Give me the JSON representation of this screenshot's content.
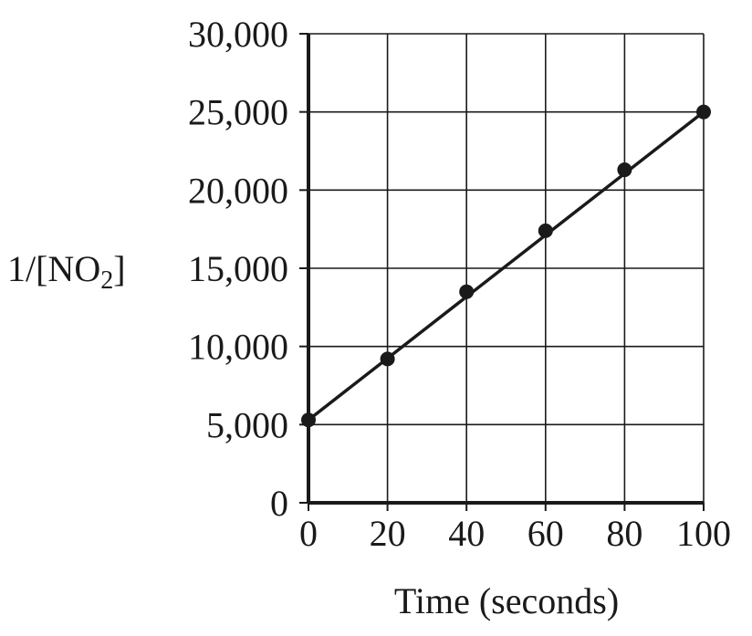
{
  "chart_data": {
    "type": "line",
    "title": "",
    "xlabel": "Time (seconds)",
    "ylabel": {
      "main": "1/[NO",
      "sub": "2",
      "close": "]"
    },
    "x_ticks": [
      "0",
      "20",
      "40",
      "60",
      "80",
      "100"
    ],
    "y_ticks": [
      "0",
      "5,000",
      "10,000",
      "15,000",
      "20,000",
      "25,000",
      "30,000"
    ],
    "xlim": [
      0,
      100
    ],
    "ylim": [
      0,
      30000
    ],
    "grid": true,
    "series": [
      {
        "x": [
          0,
          20,
          40,
          60,
          80,
          100
        ],
        "y": [
          5300,
          9200,
          13500,
          17400,
          21300,
          25000
        ],
        "markers": "filled-circle",
        "fit_line": {
          "x": [
            0,
            100
          ],
          "y": [
            5300,
            25000
          ]
        }
      }
    ],
    "colors": {
      "ink": "#1a1a1a",
      "grid": "#1a1a1a",
      "background": "#ffffff"
    }
  }
}
